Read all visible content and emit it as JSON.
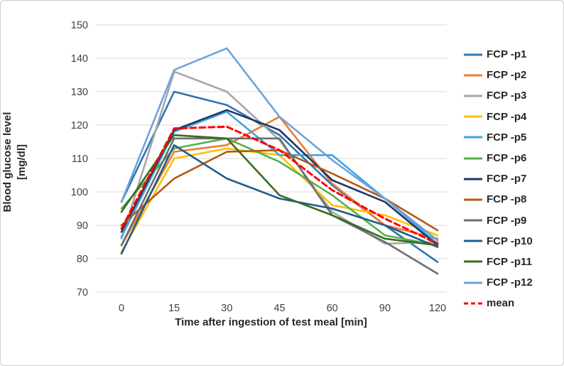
{
  "figure": {
    "background": "#ffffff",
    "border_color": "#cfcdcd"
  },
  "chart_data": {
    "type": "line",
    "title": "",
    "xlabel": "Time after ingestion of test meal [min]",
    "ylabel": "Blood glucose level [mg/dl]",
    "ylabel_lines": [
      "Blood glucose level",
      "[mg/dl]"
    ],
    "x_categories": [
      "0",
      "15",
      "30",
      "45",
      "60",
      "90",
      "120"
    ],
    "ylim": [
      70,
      150
    ],
    "ytick_step": 10,
    "grid": true,
    "legend_position": "right",
    "gridline_color": "#d9d9d9",
    "tick_label_color": "#404040",
    "series": [
      {
        "name": "FCP -p1",
        "color": "#2E75B6",
        "dash": false,
        "values": [
          97,
          130,
          126,
          117,
          102,
          90,
          79
        ]
      },
      {
        "name": "FCP -p2",
        "color": "#ED7D31",
        "dash": false,
        "values": [
          84,
          112,
          114,
          122.5,
          102.5,
          90,
          86
        ]
      },
      {
        "name": "FCP -p3",
        "color": "#A6A6A6",
        "dash": false,
        "values": [
          86,
          136,
          130,
          115.5,
          94,
          84.5,
          85
        ]
      },
      {
        "name": "FCP -p4",
        "color": "#FFC000",
        "dash": false,
        "values": [
          82,
          110,
          113,
          111,
          96,
          93,
          87
        ]
      },
      {
        "name": "FCP -p5",
        "color": "#41A5DC",
        "dash": false,
        "values": [
          86.5,
          118,
          124,
          111,
          111,
          98,
          84.5
        ]
      },
      {
        "name": "FCP -p6",
        "color": "#55B14D",
        "dash": false,
        "values": [
          95,
          113,
          116,
          109,
          99,
          87,
          84
        ]
      },
      {
        "name": "FCP -p7",
        "color": "#1F3864",
        "dash": false,
        "values": [
          88,
          118.5,
          124.5,
          118.5,
          103.5,
          97,
          84
        ]
      },
      {
        "name": "FCP -p8",
        "color": "#B55A17",
        "dash": false,
        "values": [
          90,
          104,
          112,
          112.5,
          105.5,
          98,
          88.5
        ]
      },
      {
        "name": "FCP -p9",
        "color": "#6E6E6E",
        "dash": false,
        "values": [
          84,
          116,
          116,
          116,
          93,
          85,
          75.5
        ]
      },
      {
        "name": "FCP -p10",
        "color": "#1F5C8B",
        "dash": false,
        "values": [
          81.5,
          114,
          104,
          98,
          95,
          90,
          83.5
        ]
      },
      {
        "name": "FCP -p11",
        "color": "#3A6B24",
        "dash": false,
        "values": [
          94,
          117,
          116,
          99,
          93,
          86,
          84
        ]
      },
      {
        "name": "FCP -p12",
        "color": "#6FA3DC",
        "dash": false,
        "values": [
          97,
          136.5,
          143,
          122.5,
          109.5,
          98,
          85.5
        ]
      },
      {
        "name": "mean",
        "color": "#FF0000",
        "dash": true,
        "values": [
          89,
          119,
          119.5,
          112.5,
          100.5,
          92,
          84.5
        ]
      }
    ]
  }
}
